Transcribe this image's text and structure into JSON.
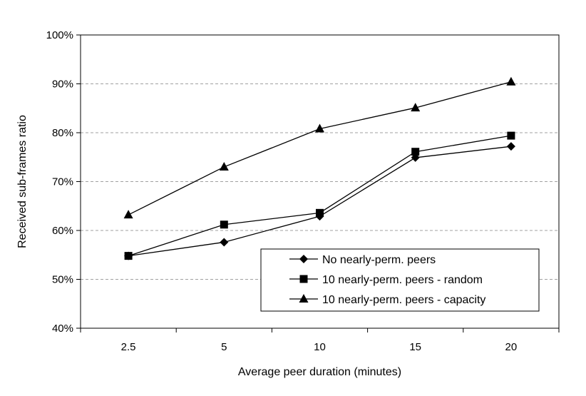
{
  "chart_data": {
    "type": "line",
    "title": "",
    "xlabel": "Average peer duration (minutes)",
    "ylabel": "Received sub-frames ratio",
    "categories": [
      "2.5",
      "5",
      "10",
      "15",
      "20"
    ],
    "ylim": [
      40,
      100
    ],
    "y_ticks": [
      "40%",
      "50%",
      "60%",
      "70%",
      "80%",
      "90%",
      "100%"
    ],
    "grid": "horizontal dashed",
    "legend_position": "bottom-right",
    "series": [
      {
        "name": "No nearly-perm. peers",
        "marker": "diamond",
        "values": [
          54.8,
          57.6,
          62.9,
          74.9,
          77.2
        ]
      },
      {
        "name": "10 nearly-perm. peers - random",
        "marker": "square",
        "values": [
          54.8,
          61.2,
          63.6,
          76.1,
          79.4
        ]
      },
      {
        "name": "10 nearly-perm. peers - capacity",
        "marker": "triangle",
        "values": [
          63.2,
          73.0,
          80.8,
          85.1,
          90.4
        ]
      }
    ],
    "colors": {
      "line": "#000000",
      "grid": "#a0a0a0"
    }
  }
}
